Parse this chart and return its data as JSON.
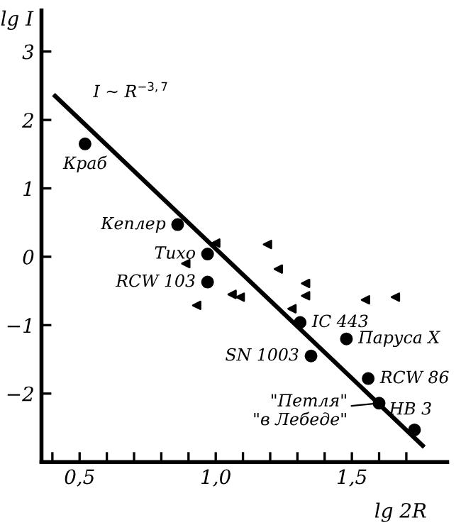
{
  "chart_data": {
    "type": "scatter",
    "xlabel": "lg 2R",
    "ylabel": "lg I",
    "xlim": [
      0.36,
      1.85
    ],
    "ylim": [
      -3.0,
      3.6
    ],
    "xticks": [
      {
        "value": 0.4,
        "label": null
      },
      {
        "value": 0.5,
        "label": "0,5"
      },
      {
        "value": 0.6,
        "label": null
      },
      {
        "value": 0.7,
        "label": null
      },
      {
        "value": 0.8,
        "label": null
      },
      {
        "value": 0.9,
        "label": null
      },
      {
        "value": 1.0,
        "label": "1,0"
      },
      {
        "value": 1.1,
        "label": null
      },
      {
        "value": 1.2,
        "label": null
      },
      {
        "value": 1.3,
        "label": null
      },
      {
        "value": 1.4,
        "label": null
      },
      {
        "value": 1.5,
        "label": "1,5"
      },
      {
        "value": 1.6,
        "label": null
      },
      {
        "value": 1.7,
        "label": null
      }
    ],
    "yticks": [
      {
        "value": -2,
        "label": "−2"
      },
      {
        "value": -1,
        "label": "−1"
      },
      0,
      1,
      2,
      3
    ],
    "grid": false,
    "series": [
      {
        "color": "#000000",
        "marker": "circle",
        "x": [
          0.52,
          0.86,
          0.97,
          0.97,
          1.31,
          1.35,
          1.48,
          1.56,
          1.6,
          1.73
        ],
        "values": [
          1.65,
          0.47,
          0.04,
          -0.37,
          -0.96,
          -1.45,
          -1.2,
          -1.78,
          -2.14,
          -2.53
        ]
      },
      {
        "color": "#000000",
        "marker": "triangle",
        "x": [
          0.89,
          1.0,
          0.93,
          1.06,
          1.19,
          1.23,
          1.33,
          1.33,
          1.09,
          1.28,
          1.55,
          1.66
        ],
        "values": [
          -0.1,
          0.2,
          -0.71,
          -0.55,
          0.18,
          -0.18,
          -0.39,
          -0.57,
          -0.59,
          -0.76,
          -0.63,
          -0.59
        ]
      },
      {
        "type": "line",
        "color": "#000000",
        "line_style": "solid",
        "x": [
          0.41,
          1.76
        ],
        "values": [
          2.35,
          -2.76
        ]
      }
    ],
    "annotations": [
      {
        "text": "I ~ R$^{−3,7}$",
        "x": 0.55,
        "y": 1.82
      },
      {
        "text": "Краб",
        "x": 0.52,
        "y": 1.65
      },
      {
        "text": "Кеплер",
        "x": 0.86,
        "y": 0.47
      },
      {
        "text": "Тихо",
        "x": 0.97,
        "y": 0.04
      },
      {
        "text": "RCW 103",
        "x": 0.97,
        "y": -0.37
      },
      {
        "text": "IC 443",
        "x": 1.31,
        "y": -0.96
      },
      {
        "text": "SN 1003",
        "x": 1.35,
        "y": -1.45
      },
      {
        "text": "Паруса X",
        "x": 1.48,
        "y": -1.2
      },
      {
        "text": "RCW 86",
        "x": 1.56,
        "y": -1.78
      },
      {
        "text": "\"Петля\"\n\"в Лебеде\"",
        "x": 1.6,
        "y": -2.14
      },
      {
        "text": "HB 3",
        "x": 1.73,
        "y": -2.53
      }
    ]
  }
}
